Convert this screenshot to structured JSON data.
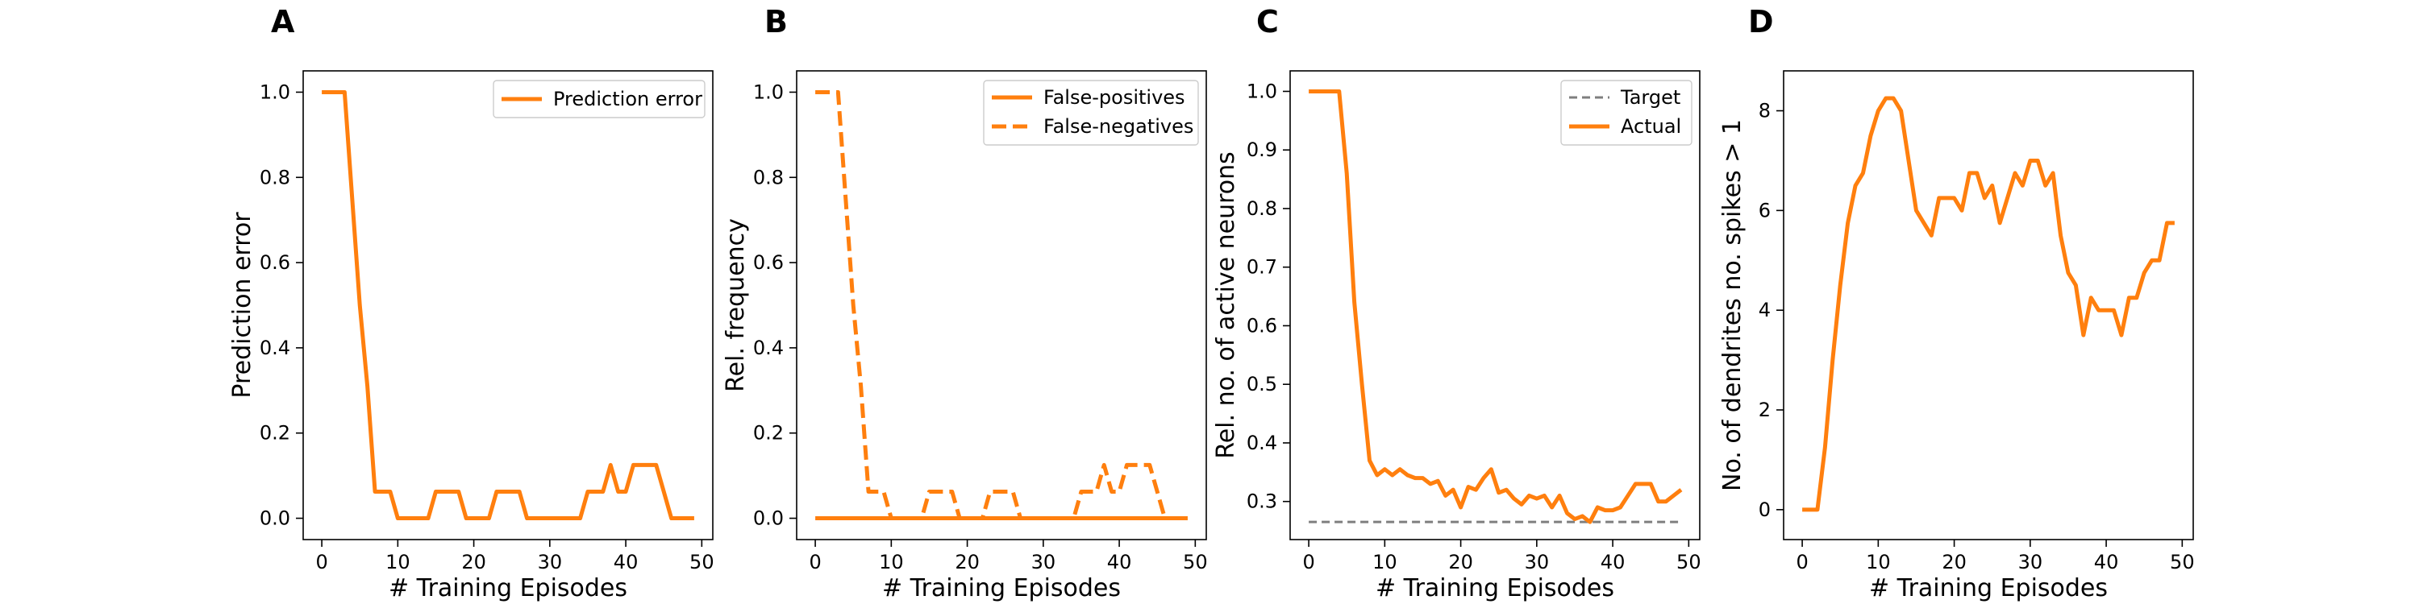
{
  "colors": {
    "series": "#ff7f0e",
    "target": "#7f7f7f"
  },
  "chart_data": [
    {
      "panel": "A",
      "type": "line",
      "xlabel": "# Training Episodes",
      "ylabel": "Prediction error",
      "xlim": [
        -2.45,
        51.45
      ],
      "ylim": [
        -0.05,
        1.05
      ],
      "xticks": [
        0,
        10,
        20,
        30,
        40,
        50
      ],
      "yticks": [
        0.0,
        0.2,
        0.4,
        0.6,
        0.8,
        1.0
      ],
      "ytick_labels": [
        "0.0",
        "0.2",
        "0.4",
        "0.6",
        "0.8",
        "1.0"
      ],
      "legend_position": "top-right",
      "x": [
        0,
        1,
        2,
        3,
        4,
        5,
        6,
        7,
        8,
        9,
        10,
        11,
        12,
        13,
        14,
        15,
        16,
        17,
        18,
        19,
        20,
        21,
        22,
        23,
        24,
        25,
        26,
        27,
        28,
        29,
        30,
        31,
        32,
        33,
        34,
        35,
        36,
        37,
        38,
        39,
        40,
        41,
        42,
        43,
        44,
        45,
        46,
        47,
        48,
        49
      ],
      "series": [
        {
          "name": "Prediction error",
          "style": "solid",
          "color": "#ff7f0e",
          "values": [
            1,
            1,
            1,
            1,
            0.75,
            0.5,
            0.31,
            0.0625,
            0.0625,
            0.0625,
            0,
            0,
            0,
            0,
            0,
            0.0625,
            0.0625,
            0.0625,
            0.0625,
            0,
            0,
            0,
            0,
            0.0625,
            0.0625,
            0.0625,
            0.0625,
            0,
            0,
            0,
            0,
            0,
            0,
            0,
            0,
            0.0625,
            0.0625,
            0.0625,
            0.125,
            0.0625,
            0.0625,
            0.125,
            0.125,
            0.125,
            0.125,
            0.0625,
            0,
            0,
            0,
            0
          ]
        }
      ]
    },
    {
      "panel": "B",
      "type": "line",
      "xlabel": "# Training Episodes",
      "ylabel": "Rel. frequency",
      "xlim": [
        -2.45,
        51.45
      ],
      "ylim": [
        -0.05,
        1.05
      ],
      "xticks": [
        0,
        10,
        20,
        30,
        40,
        50
      ],
      "yticks": [
        0.0,
        0.2,
        0.4,
        0.6,
        0.8,
        1.0
      ],
      "ytick_labels": [
        "0.0",
        "0.2",
        "0.4",
        "0.6",
        "0.8",
        "1.0"
      ],
      "legend_position": "top-right",
      "x": [
        0,
        1,
        2,
        3,
        4,
        5,
        6,
        7,
        8,
        9,
        10,
        11,
        12,
        13,
        14,
        15,
        16,
        17,
        18,
        19,
        20,
        21,
        22,
        23,
        24,
        25,
        26,
        27,
        28,
        29,
        30,
        31,
        32,
        33,
        34,
        35,
        36,
        37,
        38,
        39,
        40,
        41,
        42,
        43,
        44,
        45,
        46,
        47,
        48,
        49
      ],
      "series": [
        {
          "name": "False-positives",
          "style": "solid",
          "color": "#ff7f0e",
          "values": [
            0,
            0,
            0,
            0,
            0,
            0,
            0,
            0,
            0,
            0,
            0,
            0,
            0,
            0,
            0,
            0,
            0,
            0,
            0,
            0,
            0,
            0,
            0,
            0,
            0,
            0,
            0,
            0,
            0,
            0,
            0,
            0,
            0,
            0,
            0,
            0,
            0,
            0,
            0,
            0,
            0,
            0,
            0,
            0,
            0,
            0,
            0,
            0,
            0,
            0
          ]
        },
        {
          "name": "False-negatives",
          "style": "dashed",
          "color": "#ff7f0e",
          "values": [
            1,
            1,
            1,
            1,
            0.75,
            0.5,
            0.31,
            0.0625,
            0.0625,
            0.0625,
            0,
            0,
            0,
            0,
            0,
            0.0625,
            0.0625,
            0.0625,
            0.0625,
            0,
            0,
            0,
            0,
            0.0625,
            0.0625,
            0.0625,
            0.0625,
            0,
            0,
            0,
            0,
            0,
            0,
            0,
            0,
            0.0625,
            0.0625,
            0.0625,
            0.125,
            0.0625,
            0.0625,
            0.125,
            0.125,
            0.125,
            0.125,
            0.0625,
            0,
            0,
            0,
            0
          ]
        }
      ]
    },
    {
      "panel": "C",
      "type": "line",
      "xlabel": "# Training Episodes",
      "ylabel": "Rel. no. of active neurons",
      "xlim": [
        -2.45,
        51.45
      ],
      "ylim": [
        0.235,
        1.035
      ],
      "xticks": [
        0,
        10,
        20,
        30,
        40,
        50
      ],
      "yticks": [
        0.3,
        0.4,
        0.5,
        0.6,
        0.7,
        0.8,
        0.9,
        1.0
      ],
      "ytick_labels": [
        "0.3",
        "0.4",
        "0.5",
        "0.6",
        "0.7",
        "0.8",
        "0.9",
        "1.0"
      ],
      "legend_position": "top-right",
      "x": [
        0,
        1,
        2,
        3,
        4,
        5,
        6,
        7,
        8,
        9,
        10,
        11,
        12,
        13,
        14,
        15,
        16,
        17,
        18,
        19,
        20,
        21,
        22,
        23,
        24,
        25,
        26,
        27,
        28,
        29,
        30,
        31,
        32,
        33,
        34,
        35,
        36,
        37,
        38,
        39,
        40,
        41,
        42,
        43,
        44,
        45,
        46,
        47,
        48,
        49
      ],
      "series": [
        {
          "name": "Target",
          "style": "dashed",
          "color": "#7f7f7f",
          "values": [
            0.265,
            0.265,
            0.265,
            0.265,
            0.265,
            0.265,
            0.265,
            0.265,
            0.265,
            0.265,
            0.265,
            0.265,
            0.265,
            0.265,
            0.265,
            0.265,
            0.265,
            0.265,
            0.265,
            0.265,
            0.265,
            0.265,
            0.265,
            0.265,
            0.265,
            0.265,
            0.265,
            0.265,
            0.265,
            0.265,
            0.265,
            0.265,
            0.265,
            0.265,
            0.265,
            0.265,
            0.265,
            0.265,
            0.265,
            0.265,
            0.265,
            0.265,
            0.265,
            0.265,
            0.265,
            0.265,
            0.265,
            0.265,
            0.265,
            0.265
          ]
        },
        {
          "name": "Actual",
          "style": "solid",
          "color": "#ff7f0e",
          "values": [
            1.0,
            1.0,
            1.0,
            1.0,
            1.0,
            0.86,
            0.64,
            0.5,
            0.37,
            0.345,
            0.355,
            0.345,
            0.355,
            0.345,
            0.34,
            0.34,
            0.33,
            0.335,
            0.31,
            0.32,
            0.29,
            0.325,
            0.32,
            0.34,
            0.355,
            0.315,
            0.32,
            0.305,
            0.295,
            0.31,
            0.305,
            0.31,
            0.29,
            0.31,
            0.28,
            0.27,
            0.275,
            0.265,
            0.29,
            0.285,
            0.285,
            0.29,
            0.31,
            0.33,
            0.33,
            0.33,
            0.3,
            0.3,
            0.31,
            0.32
          ]
        }
      ]
    },
    {
      "panel": "D",
      "type": "line",
      "xlabel": "# Training Episodes",
      "ylabel": "No. of dendrites no. spikes > 1",
      "xlim": [
        -2.45,
        51.45
      ],
      "ylim": [
        -0.6,
        8.8
      ],
      "xticks": [
        0,
        10,
        20,
        30,
        40,
        50
      ],
      "yticks": [
        0,
        2,
        4,
        6,
        8
      ],
      "ytick_labels": [
        "0",
        "2",
        "4",
        "6",
        "8"
      ],
      "x": [
        0,
        1,
        2,
        3,
        4,
        5,
        6,
        7,
        8,
        9,
        10,
        11,
        12,
        13,
        14,
        15,
        16,
        17,
        18,
        19,
        20,
        21,
        22,
        23,
        24,
        25,
        26,
        27,
        28,
        29,
        30,
        31,
        32,
        33,
        34,
        35,
        36,
        37,
        38,
        39,
        40,
        41,
        42,
        43,
        44,
        45,
        46,
        47,
        48,
        49
      ],
      "series": [
        {
          "style": "solid",
          "color": "#ff7f0e",
          "values": [
            0,
            0,
            0,
            1.25,
            3.0,
            4.5,
            5.75,
            6.5,
            6.75,
            7.5,
            8.0,
            8.25,
            8.25,
            8.0,
            7.0,
            6.0,
            5.75,
            5.5,
            6.25,
            6.25,
            6.25,
            6.0,
            6.75,
            6.75,
            6.25,
            6.5,
            5.75,
            6.25,
            6.75,
            6.5,
            7.0,
            7.0,
            6.5,
            6.75,
            5.5,
            4.75,
            4.5,
            3.5,
            4.25,
            4.0,
            4.0,
            4.0,
            3.5,
            4.25,
            4.25,
            4.75,
            5.0,
            5.0,
            5.75,
            5.75
          ]
        }
      ]
    }
  ]
}
